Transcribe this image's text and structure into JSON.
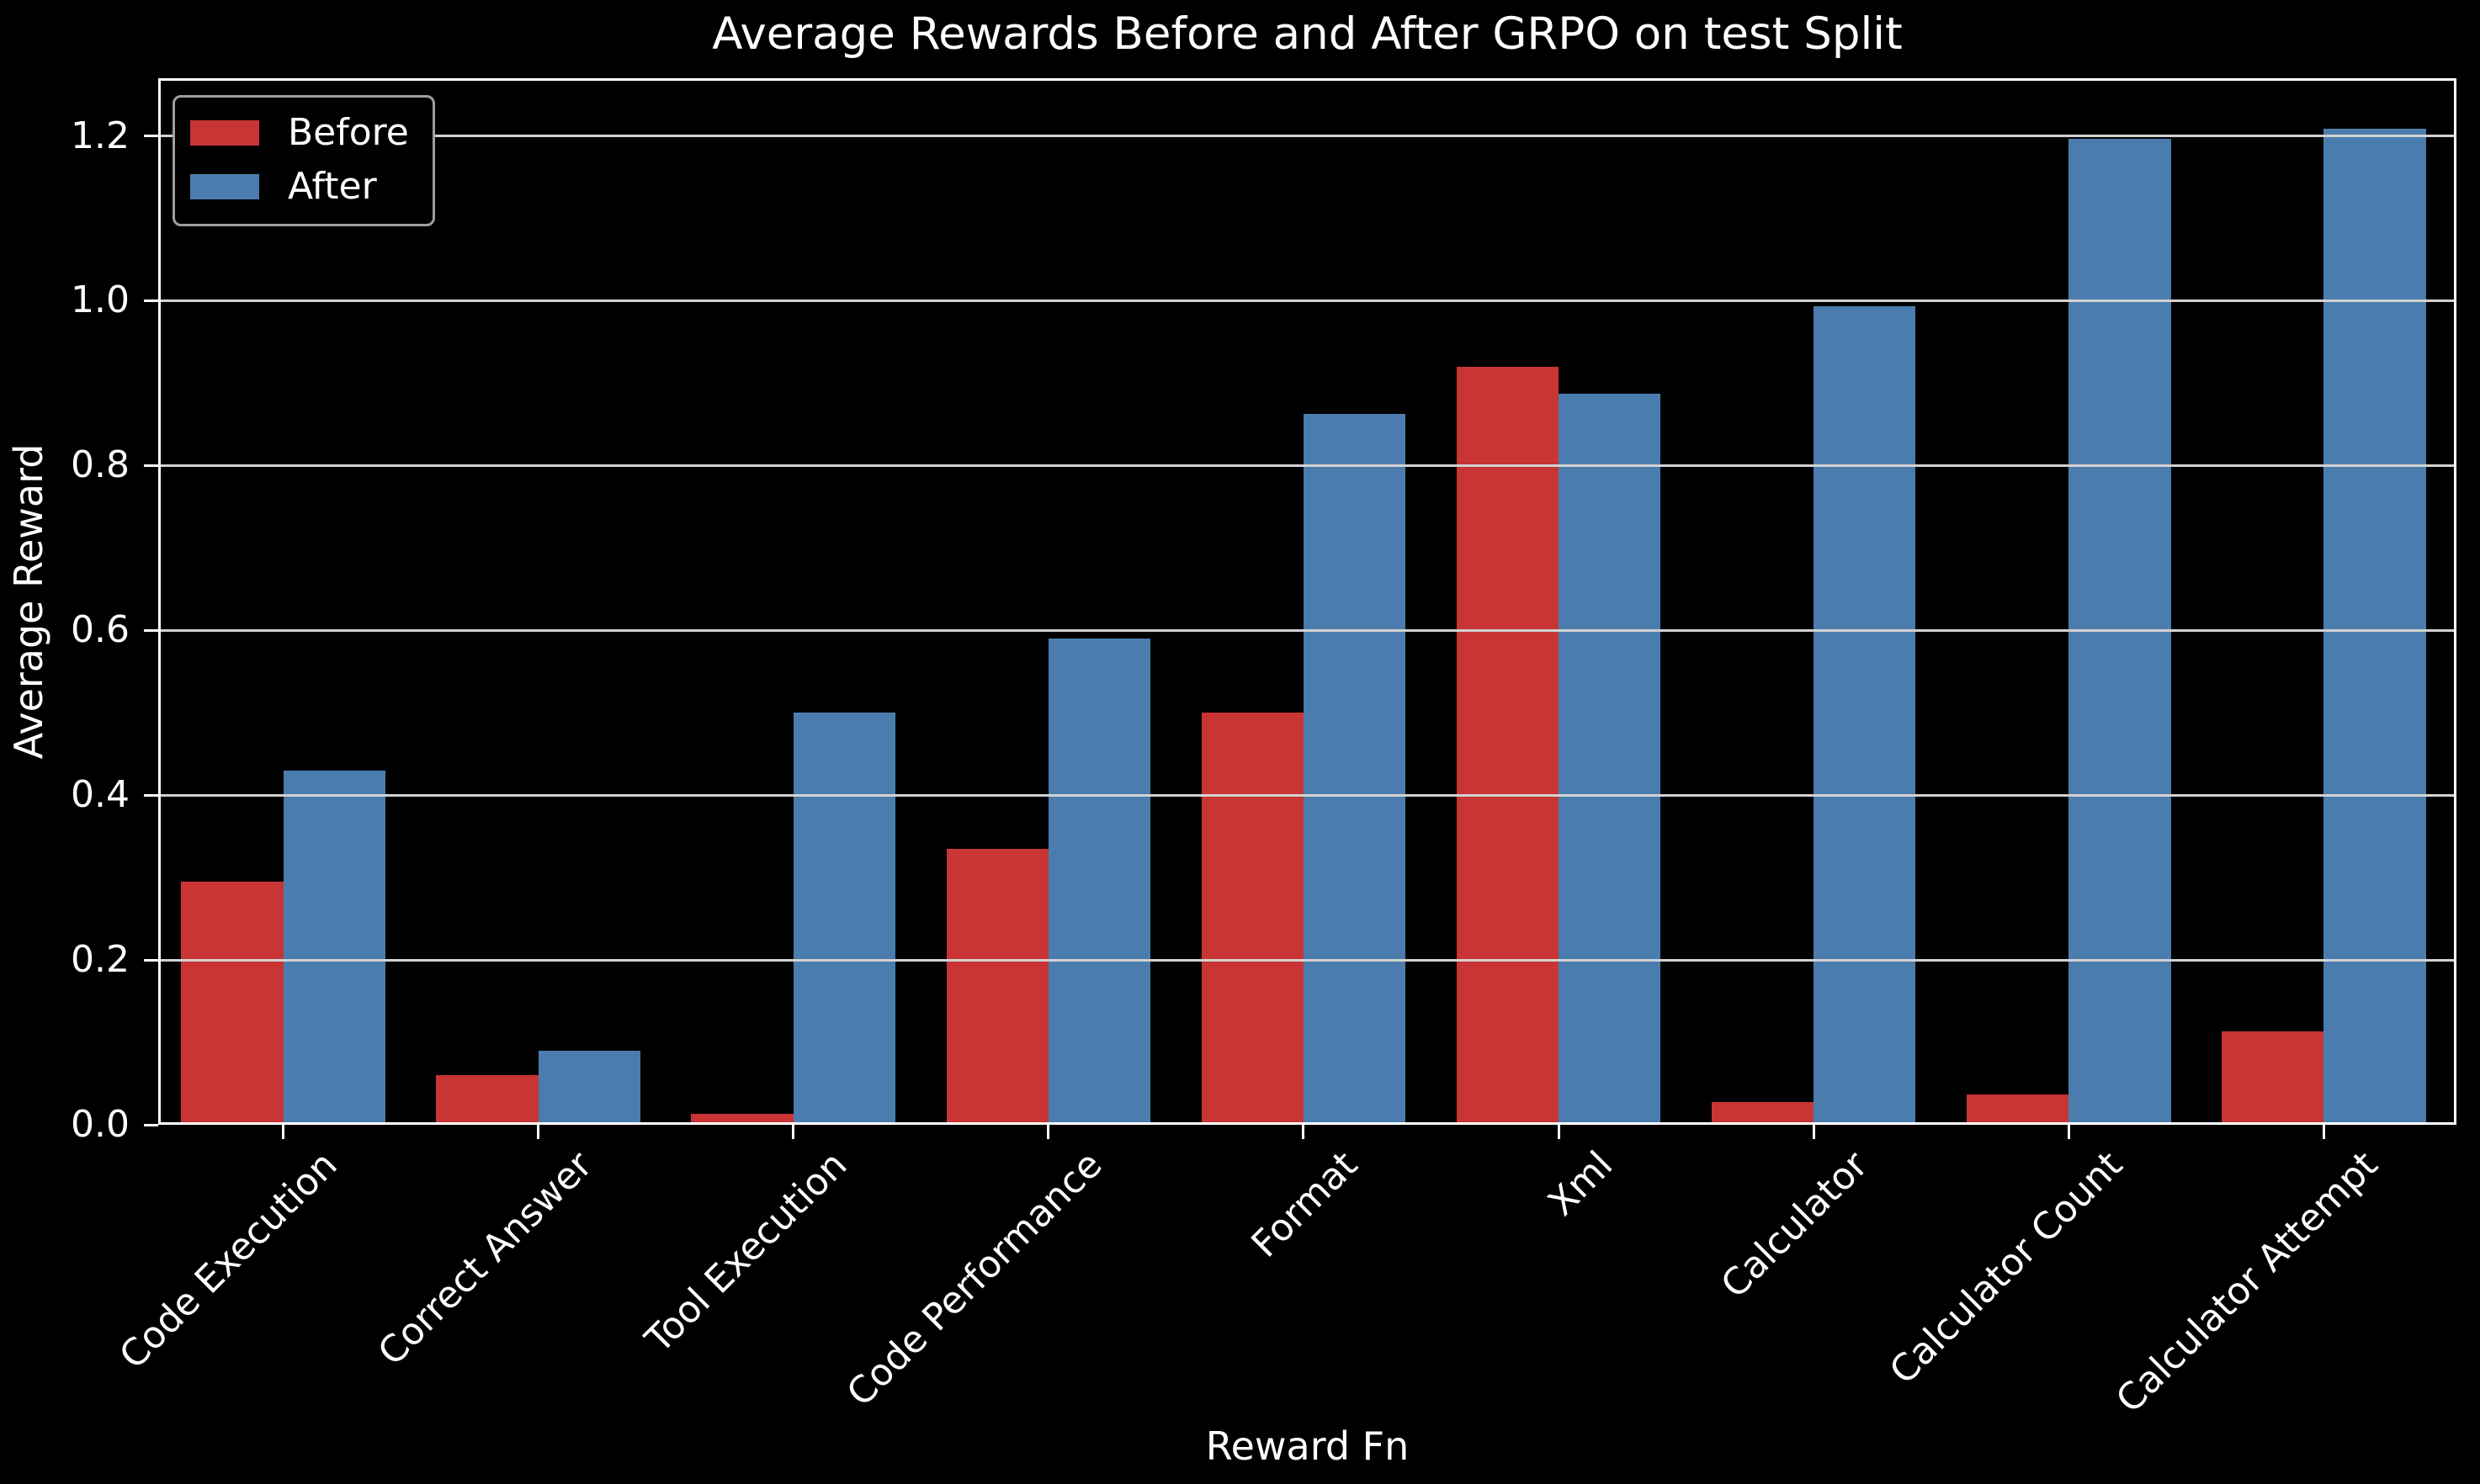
{
  "chart_data": {
    "type": "bar",
    "title": "Average Rewards Before and After GRPO on test Split",
    "xlabel": "Reward Fn",
    "ylabel": "Average Reward",
    "categories": [
      "Code Execution",
      "Correct Answer",
      "Tool Execution",
      "Code Performance",
      "Format",
      "Xml",
      "Calculator",
      "Calculator Count",
      "Calculator Attempt"
    ],
    "series": [
      {
        "name": "Before",
        "color": "#c93434",
        "values": [
          0.295,
          0.06,
          0.013,
          0.335,
          0.5,
          0.92,
          0.028,
          0.037,
          0.113
        ]
      },
      {
        "name": "After",
        "color": "#4a7dad",
        "values": [
          0.43,
          0.09,
          0.5,
          0.59,
          0.863,
          0.887,
          0.993,
          1.197,
          1.209
        ]
      }
    ],
    "yticks": [
      0.0,
      0.2,
      0.4,
      0.6,
      0.8,
      1.0,
      1.2
    ],
    "ylim": [
      0,
      1.27
    ],
    "xlim": [
      -0.49,
      8.52
    ],
    "bar_width": 0.4,
    "grid": true,
    "grid_color": "#d2d2d2",
    "axis_color": "#ffffff",
    "text_color": "#ffffff",
    "background": "#000000",
    "legend": {
      "position": "upper left",
      "border_color": "#9f9f9f"
    }
  }
}
